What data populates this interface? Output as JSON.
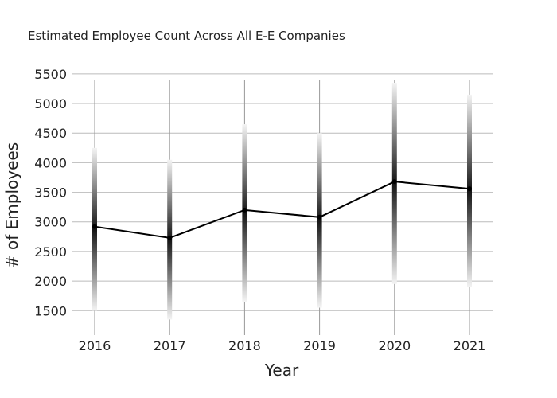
{
  "chart_data": {
    "type": "line",
    "title": "Estimated Employee Count Across All E-E Companies",
    "xlabel": "Year",
    "ylabel": "# of Employees",
    "x": [
      "2016",
      "2017",
      "2018",
      "2019",
      "2020",
      "2021"
    ],
    "y_ticks": [
      1500,
      2000,
      2500,
      3000,
      3500,
      4000,
      4500,
      5000,
      5500
    ],
    "ylim": [
      1100,
      5700
    ],
    "grid": true,
    "series": [
      {
        "values": [
          2920,
          2730,
          3200,
          3080,
          3680,
          3560
        ],
        "lower": [
          1500,
          1350,
          1650,
          1550,
          1950,
          1900
        ],
        "upper": [
          4250,
          4050,
          4650,
          4500,
          5350,
          5150
        ]
      }
    ],
    "colors": {
      "line": "#000000",
      "grid": "#bbbbbb",
      "band_dark": "#111111",
      "band_light": "#f2f2f2"
    }
  }
}
